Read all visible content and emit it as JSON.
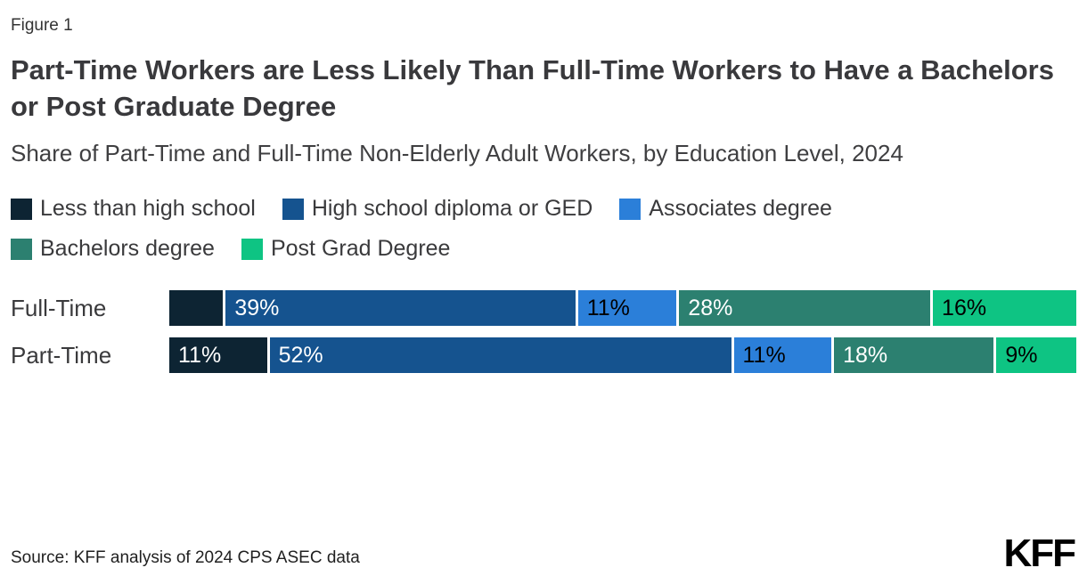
{
  "figure_label": "Figure 1",
  "title": "Part-Time Workers are Less Likely Than Full-Time Workers to Have a Bachelors or Post Graduate Degree",
  "subtitle": "Share of Part-Time and Full-Time Non-Elderly Adult Workers, by Education Level, 2024",
  "source": "Source: KFF analysis of 2024 CPS ASEC data",
  "logo_text": "KFF",
  "chart_data": {
    "type": "bar",
    "orientation": "horizontal",
    "stacked": true,
    "title": "Part-Time Workers are Less Likely Than Full-Time Workers to Have a Bachelors or Post Graduate Degree",
    "categories": [
      "Full-Time",
      "Part-Time"
    ],
    "value_unit": "%",
    "legend_position": "top",
    "series": [
      {
        "name": "Less than high school",
        "color": "#0d2433",
        "label_color": "#ffffff",
        "values": [
          6,
          11
        ],
        "labels": [
          "",
          "11%"
        ]
      },
      {
        "name": "High school diploma or GED",
        "color": "#15538f",
        "label_color": "#ffffff",
        "values": [
          39,
          52
        ],
        "labels": [
          "39%",
          "52%"
        ]
      },
      {
        "name": "Associates degree",
        "color": "#2b7fd9",
        "label_color": "#000000",
        "values": [
          11,
          11
        ],
        "labels": [
          "11%",
          "11%"
        ]
      },
      {
        "name": "Bachelors degree",
        "color": "#2c8070",
        "label_color": "#ffffff",
        "values": [
          28,
          18
        ],
        "labels": [
          "28%",
          "18%"
        ]
      },
      {
        "name": "Post Grad Degree",
        "color": "#0ec483",
        "label_color": "#000000",
        "values": [
          16,
          9
        ],
        "labels": [
          "16%",
          "9%"
        ]
      }
    ]
  }
}
